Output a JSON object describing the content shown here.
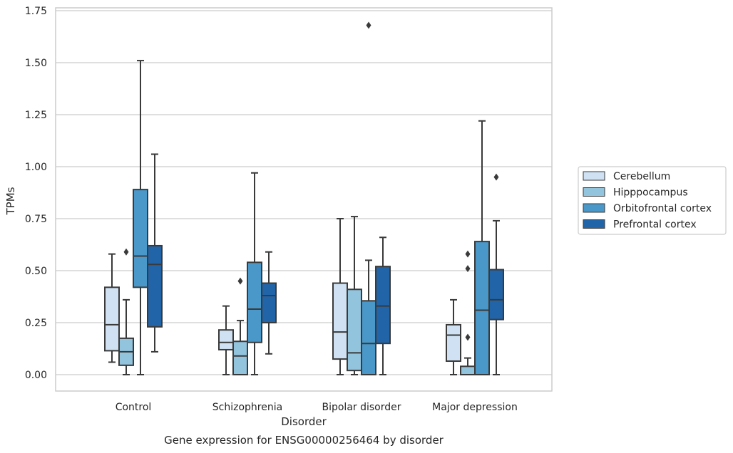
{
  "chart_data": {
    "type": "box",
    "xlabel": "Disorder",
    "ylabel": "TPMs",
    "caption": "Gene expression for ENSG00000256464 by disorder",
    "ylim": [
      -0.08,
      1.76
    ],
    "yticks": [
      0.0,
      0.25,
      0.5,
      0.75,
      1.0,
      1.25,
      1.5,
      1.75
    ],
    "ytick_labels": [
      "0.00",
      "0.25",
      "0.50",
      "0.75",
      "1.00",
      "1.25",
      "1.50",
      "1.75"
    ],
    "grid": "horizontal",
    "legend_position": "right",
    "categories": [
      "Control",
      "Schizophrenia",
      "Bipolar disorder",
      "Major depression"
    ],
    "series": [
      {
        "name": "Cerebellum",
        "color": "#cfe1f2",
        "boxes": [
          {
            "whislo": 0.06,
            "q1": 0.115,
            "med": 0.24,
            "q3": 0.42,
            "whishi": 0.58,
            "fliers": []
          },
          {
            "whislo": 0.0,
            "q1": 0.12,
            "med": 0.155,
            "q3": 0.215,
            "whishi": 0.33,
            "fliers": []
          },
          {
            "whislo": 0.0,
            "q1": 0.075,
            "med": 0.205,
            "q3": 0.44,
            "whishi": 0.75,
            "fliers": []
          },
          {
            "whislo": 0.0,
            "q1": 0.065,
            "med": 0.19,
            "q3": 0.24,
            "whishi": 0.36,
            "fliers": []
          }
        ]
      },
      {
        "name": "Hipppocampus",
        "color": "#93c4de",
        "boxes": [
          {
            "whislo": 0.0,
            "q1": 0.045,
            "med": 0.11,
            "q3": 0.175,
            "whishi": 0.36,
            "fliers": [
              0.59
            ]
          },
          {
            "whislo": 0.0,
            "q1": 0.0,
            "med": 0.09,
            "q3": 0.16,
            "whishi": 0.26,
            "fliers": [
              0.45
            ]
          },
          {
            "whislo": 0.0,
            "q1": 0.02,
            "med": 0.105,
            "q3": 0.41,
            "whishi": 0.76,
            "fliers": []
          },
          {
            "whislo": 0.0,
            "q1": 0.0,
            "med": 0.0,
            "q3": 0.04,
            "whishi": 0.08,
            "fliers": [
              0.18,
              0.51,
              0.58
            ]
          }
        ]
      },
      {
        "name": "Orbitofrontal cortex",
        "color": "#4a98c9",
        "boxes": [
          {
            "whislo": 0.0,
            "q1": 0.42,
            "med": 0.57,
            "q3": 0.89,
            "whishi": 1.51,
            "fliers": []
          },
          {
            "whislo": 0.0,
            "q1": 0.155,
            "med": 0.315,
            "q3": 0.54,
            "whishi": 0.97,
            "fliers": []
          },
          {
            "whislo": 0.0,
            "q1": 0.0,
            "med": 0.15,
            "q3": 0.355,
            "whishi": 0.55,
            "fliers": [
              1.68
            ]
          },
          {
            "whislo": 0.0,
            "q1": 0.0,
            "med": 0.31,
            "q3": 0.64,
            "whishi": 1.22,
            "fliers": []
          }
        ]
      },
      {
        "name": "Prefrontal cortex",
        "color": "#2264a8",
        "boxes": [
          {
            "whislo": 0.11,
            "q1": 0.23,
            "med": 0.53,
            "q3": 0.62,
            "whishi": 1.06,
            "fliers": []
          },
          {
            "whislo": 0.1,
            "q1": 0.25,
            "med": 0.38,
            "q3": 0.44,
            "whishi": 0.59,
            "fliers": []
          },
          {
            "whislo": 0.0,
            "q1": 0.15,
            "med": 0.33,
            "q3": 0.52,
            "whishi": 0.66,
            "fliers": []
          },
          {
            "whislo": 0.0,
            "q1": 0.265,
            "med": 0.36,
            "q3": 0.505,
            "whishi": 0.74,
            "fliers": [
              0.95
            ]
          }
        ]
      }
    ]
  }
}
